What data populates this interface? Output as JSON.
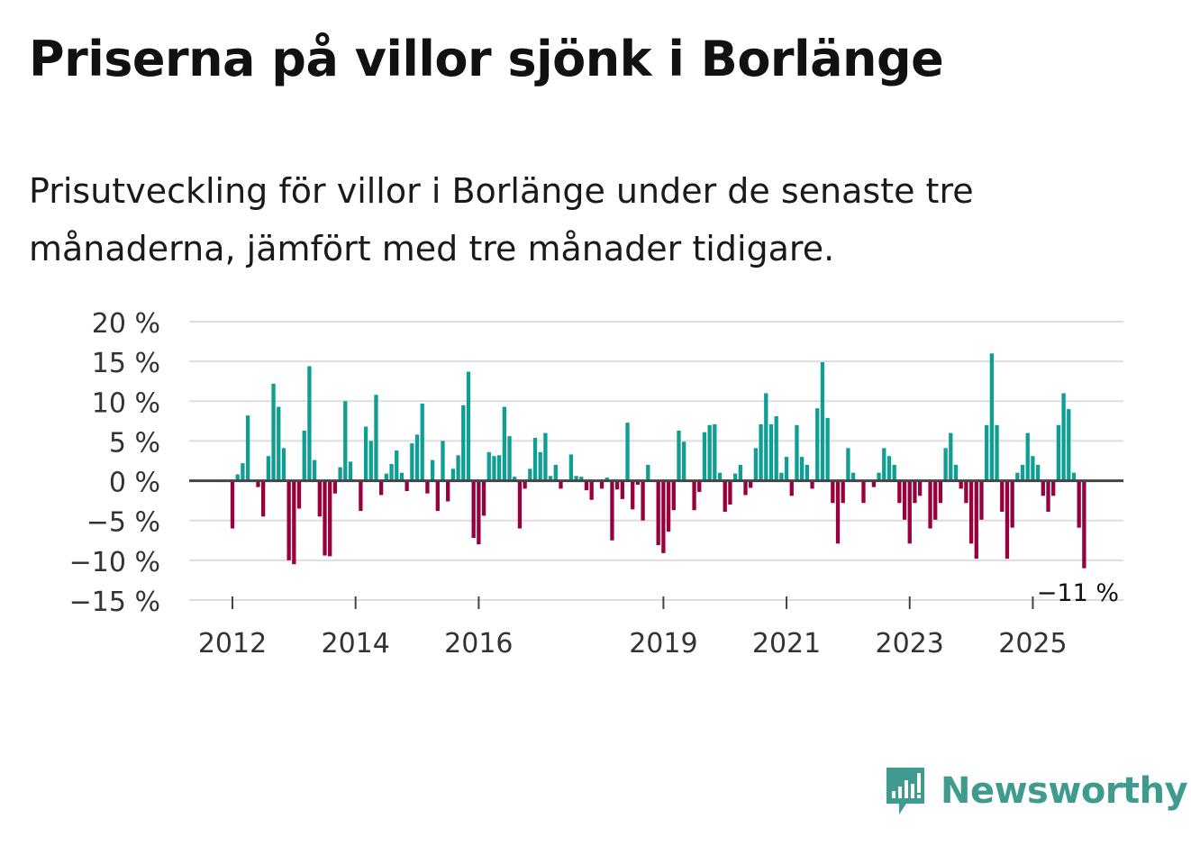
{
  "title": "Priserna på villor sjönk i Borlänge",
  "subtitle": "Prisutveckling för villor i Borlänge under de senaste tre månaderna, jämfört med tre månader tidigare.",
  "colors": {
    "positive": "#0f9e93",
    "negative": "#98003d",
    "zero_line": "#444444",
    "grid": "#dddddd",
    "brand": "#3f9b8e"
  },
  "brand": {
    "name": "Newsworthy",
    "icon": "chart-logo-icon"
  },
  "chart_data": {
    "type": "bar",
    "title": "",
    "xlabel": "",
    "ylabel": "",
    "ylim": [
      -15,
      20
    ],
    "y_ticks": [
      20,
      15,
      10,
      5,
      0,
      -5,
      -10,
      -15
    ],
    "y_tick_labels": [
      "20 %",
      "15 %",
      "10 %",
      "5 %",
      "0 %",
      "−5 %",
      "−10 %",
      "−15 %"
    ],
    "x_ticks": [
      {
        "label": "2012",
        "index": 0
      },
      {
        "label": "2014",
        "index": 24
      },
      {
        "label": "2016",
        "index": 48
      },
      {
        "label": "2019",
        "index": 84
      },
      {
        "label": "2021",
        "index": 108
      },
      {
        "label": "2023",
        "index": 132
      },
      {
        "label": "2025",
        "index": 156
      }
    ],
    "first_period": "2012-01",
    "values": [
      -6,
      0.8,
      2.2,
      8.2,
      0,
      -0.8,
      -4.5,
      3.1,
      12.2,
      9.3,
      4.1,
      -10,
      -10.5,
      -3.5,
      6.3,
      14.4,
      2.6,
      -4.5,
      -9.4,
      -9.5,
      -1.6,
      1.7,
      10,
      2.4,
      0,
      -3.8,
      6.8,
      5,
      10.8,
      -1.8,
      0.9,
      2.1,
      3.8,
      1,
      -1.3,
      4.7,
      5.8,
      9.7,
      -1.6,
      2.6,
      -3.8,
      5,
      -2.6,
      1.5,
      3.2,
      9.5,
      13.7,
      -7.2,
      -8,
      -4.4,
      3.6,
      3.1,
      3.2,
      9.3,
      5.6,
      0.5,
      -6,
      -1,
      1.5,
      5.4,
      3.6,
      6,
      0.6,
      2,
      -1,
      0,
      3.3,
      0.6,
      0.5,
      -1.2,
      -2.4,
      0,
      -1,
      0.4,
      -7.5,
      -1.1,
      -2.3,
      7.3,
      -3.6,
      -0.5,
      -5,
      2,
      0,
      -8.1,
      -9.1,
      -6.4,
      -3.7,
      6.3,
      4.9,
      0,
      -3.7,
      -1.4,
      6.1,
      7,
      7.1,
      1,
      -3.9,
      -3,
      0.9,
      2,
      -1.8,
      -0.9,
      4.1,
      7.1,
      11,
      7.1,
      8.1,
      1,
      3,
      -1.9,
      7,
      3,
      2,
      -1,
      9.1,
      14.9,
      7.9,
      -2.8,
      -7.9,
      -2.8,
      4.1,
      1,
      0,
      -2.8,
      0,
      -0.8,
      1,
      4.1,
      3.1,
      2,
      -2.8,
      -4.9,
      -7.9,
      -2.8,
      -1.9,
      0,
      -6,
      -4.9,
      -2.8,
      4.1,
      6,
      2,
      -1,
      -2.8,
      -7.9,
      -9.8,
      -4.9,
      7,
      16,
      7,
      -3.9,
      -9.8,
      -5.9,
      1,
      2,
      6,
      3.1,
      2,
      -1.9,
      -3.9,
      -1.9,
      7,
      11,
      9,
      1,
      -5.9,
      -11
    ],
    "annotation": {
      "text": "−11 %",
      "index": 178
    }
  }
}
